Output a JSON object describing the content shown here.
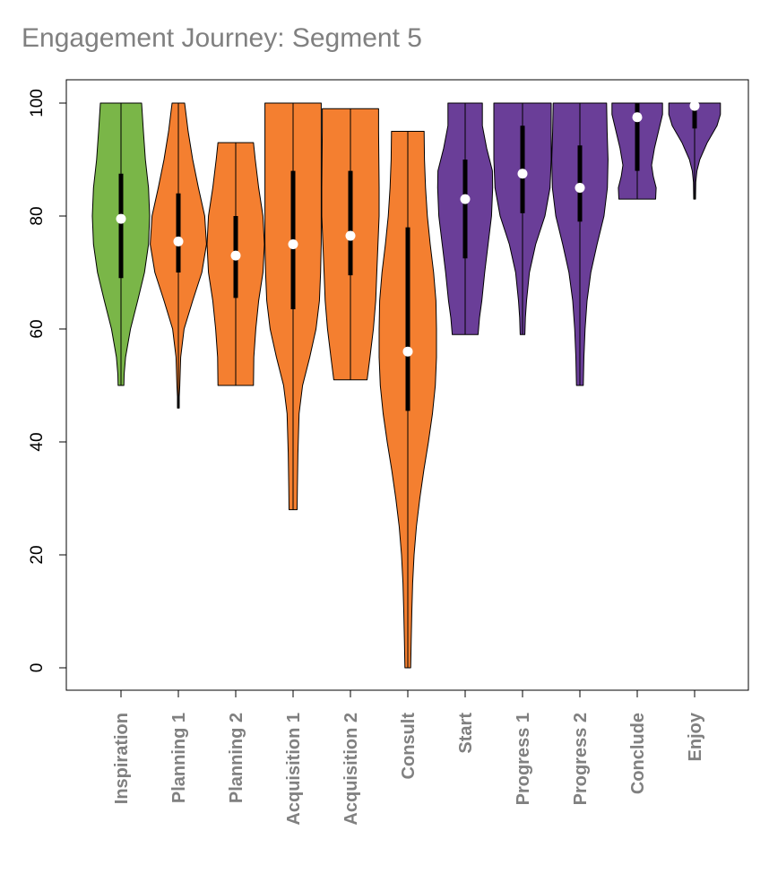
{
  "chart_data": {
    "type": "violin",
    "title": "Engagement Journey: Segment 5",
    "xlabel": "",
    "ylabel": "",
    "ylim": [
      -4,
      104
    ],
    "yticks": [
      0,
      20,
      40,
      60,
      80,
      100
    ],
    "colors": {
      "green": "#7ab648",
      "orange": "#f47f30",
      "purple": "#6a3e98",
      "median_marker": "#ffffff",
      "box": "#000000"
    },
    "categories": [
      "Inspiration",
      "Planning 1",
      "Planning 2",
      "Acquisition 1",
      "Acquisition 2",
      "Consult",
      "Start",
      "Progress 1",
      "Progress 2",
      "Conclude",
      "Enjoy"
    ],
    "series": [
      {
        "name": "Inspiration",
        "color": "green",
        "min": 50,
        "q1": 69,
        "median": 79.5,
        "q3": 87.5,
        "max": 100,
        "density": [
          [
            50,
            0.1
          ],
          [
            52,
            0.11
          ],
          [
            55,
            0.16
          ],
          [
            60,
            0.33
          ],
          [
            65,
            0.58
          ],
          [
            70,
            0.82
          ],
          [
            75,
            0.96
          ],
          [
            80,
            1.0
          ],
          [
            85,
            0.96
          ],
          [
            90,
            0.85
          ],
          [
            95,
            0.78
          ],
          [
            100,
            0.72
          ]
        ]
      },
      {
        "name": "Planning 1",
        "color": "orange",
        "min": 46,
        "q1": 70,
        "median": 75.5,
        "q3": 84,
        "max": 100,
        "density": [
          [
            46,
            0.03
          ],
          [
            48,
            0.03
          ],
          [
            50,
            0.05
          ],
          [
            55,
            0.08
          ],
          [
            60,
            0.2
          ],
          [
            65,
            0.5
          ],
          [
            70,
            0.82
          ],
          [
            75,
            0.98
          ],
          [
            80,
            0.92
          ],
          [
            85,
            0.7
          ],
          [
            90,
            0.5
          ],
          [
            95,
            0.34
          ],
          [
            100,
            0.22
          ]
        ]
      },
      {
        "name": "Planning 2",
        "color": "orange",
        "min": 50,
        "q1": 65.5,
        "median": 73,
        "q3": 80,
        "max": 93,
        "density": [
          [
            50,
            0.62
          ],
          [
            55,
            0.63
          ],
          [
            60,
            0.7
          ],
          [
            65,
            0.8
          ],
          [
            70,
            0.95
          ],
          [
            75,
            1.0
          ],
          [
            80,
            0.95
          ],
          [
            85,
            0.8
          ],
          [
            90,
            0.68
          ],
          [
            93,
            0.62
          ]
        ]
      },
      {
        "name": "Acquisition 1",
        "color": "orange",
        "min": 28,
        "q1": 63.5,
        "median": 75,
        "q3": 88,
        "max": 100,
        "density": [
          [
            28,
            0.14
          ],
          [
            32,
            0.15
          ],
          [
            38,
            0.17
          ],
          [
            45,
            0.21
          ],
          [
            50,
            0.33
          ],
          [
            55,
            0.58
          ],
          [
            60,
            0.8
          ],
          [
            65,
            0.92
          ],
          [
            70,
            0.96
          ],
          [
            75,
            0.98
          ],
          [
            80,
            0.98
          ],
          [
            85,
            0.98
          ],
          [
            90,
            0.98
          ],
          [
            95,
            0.98
          ],
          [
            100,
            0.98
          ]
        ]
      },
      {
        "name": "Acquisition 2",
        "color": "orange",
        "min": 51,
        "q1": 69.5,
        "median": 76.5,
        "q3": 88,
        "max": 99,
        "density": [
          [
            51,
            0.58
          ],
          [
            55,
            0.68
          ],
          [
            60,
            0.8
          ],
          [
            65,
            0.88
          ],
          [
            70,
            0.92
          ],
          [
            75,
            0.96
          ],
          [
            80,
            1.0
          ],
          [
            85,
            1.0
          ],
          [
            90,
            0.99
          ],
          [
            95,
            0.98
          ],
          [
            99,
            0.98
          ]
        ]
      },
      {
        "name": "Consult",
        "color": "orange",
        "min": 0,
        "q1": 45.5,
        "median": 56,
        "q3": 78,
        "max": 95,
        "density": [
          [
            0,
            0.1
          ],
          [
            5,
            0.12
          ],
          [
            10,
            0.14
          ],
          [
            15,
            0.17
          ],
          [
            20,
            0.22
          ],
          [
            25,
            0.3
          ],
          [
            30,
            0.42
          ],
          [
            35,
            0.56
          ],
          [
            40,
            0.72
          ],
          [
            45,
            0.86
          ],
          [
            50,
            0.96
          ],
          [
            55,
            1.0
          ],
          [
            60,
            1.0
          ],
          [
            65,
            0.98
          ],
          [
            70,
            0.9
          ],
          [
            75,
            0.78
          ],
          [
            80,
            0.68
          ],
          [
            85,
            0.62
          ],
          [
            90,
            0.58
          ],
          [
            95,
            0.57
          ]
        ]
      },
      {
        "name": "Start",
        "color": "purple",
        "min": 59,
        "q1": 72.5,
        "median": 83,
        "q3": 90,
        "max": 100,
        "density": [
          [
            59,
            0.45
          ],
          [
            62,
            0.5
          ],
          [
            65,
            0.58
          ],
          [
            70,
            0.68
          ],
          [
            75,
            0.8
          ],
          [
            80,
            0.92
          ],
          [
            85,
            0.96
          ],
          [
            88,
            0.95
          ],
          [
            92,
            0.75
          ],
          [
            96,
            0.6
          ],
          [
            100,
            0.6
          ]
        ]
      },
      {
        "name": "Progress 1",
        "color": "purple",
        "min": 59,
        "q1": 80.5,
        "median": 87.5,
        "q3": 96,
        "max": 100,
        "density": [
          [
            59,
            0.08
          ],
          [
            62,
            0.1
          ],
          [
            65,
            0.14
          ],
          [
            70,
            0.24
          ],
          [
            75,
            0.46
          ],
          [
            80,
            0.78
          ],
          [
            85,
            0.96
          ],
          [
            90,
            1.0
          ],
          [
            95,
            1.0
          ],
          [
            100,
            1.0
          ]
        ]
      },
      {
        "name": "Progress 2",
        "color": "purple",
        "min": 50,
        "q1": 79,
        "median": 85,
        "q3": 92.5,
        "max": 100,
        "density": [
          [
            50,
            0.12
          ],
          [
            55,
            0.14
          ],
          [
            60,
            0.18
          ],
          [
            65,
            0.25
          ],
          [
            70,
            0.38
          ],
          [
            75,
            0.6
          ],
          [
            80,
            0.84
          ],
          [
            85,
            0.96
          ],
          [
            90,
            0.98
          ],
          [
            95,
            0.95
          ],
          [
            100,
            0.93
          ]
        ]
      },
      {
        "name": "Conclude",
        "color": "purple",
        "min": 83,
        "q1": 88,
        "median": 97.5,
        "q3": 100,
        "max": 100,
        "density": [
          [
            83,
            0.64
          ],
          [
            85,
            0.66
          ],
          [
            87,
            0.56
          ],
          [
            89,
            0.5
          ],
          [
            92,
            0.6
          ],
          [
            95,
            0.74
          ],
          [
            98,
            0.88
          ],
          [
            100,
            0.88
          ]
        ]
      },
      {
        "name": "Enjoy",
        "color": "purple",
        "min": 83,
        "q1": 95.5,
        "median": 99.5,
        "q3": 100,
        "max": 100,
        "density": [
          [
            83,
            0.03
          ],
          [
            86,
            0.04
          ],
          [
            88,
            0.08
          ],
          [
            90,
            0.18
          ],
          [
            93,
            0.44
          ],
          [
            96,
            0.78
          ],
          [
            98,
            0.9
          ],
          [
            100,
            0.9
          ]
        ]
      }
    ]
  }
}
